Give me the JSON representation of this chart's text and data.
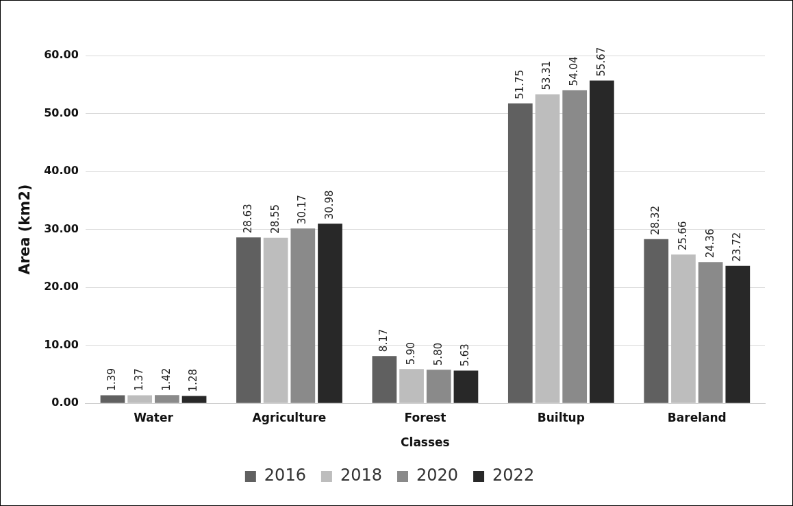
{
  "chart_data": {
    "type": "bar",
    "xlabel": "Classes",
    "ylabel": "Area (km2)",
    "categories": [
      "Water",
      "Agriculture",
      "Forest",
      "Builtup",
      "Bareland"
    ],
    "series": [
      {
        "name": "2016",
        "color": "#606060",
        "values": [
          1.39,
          28.63,
          8.17,
          51.75,
          28.32
        ],
        "value_labels": [
          "1.39",
          "28.63",
          "8.17",
          "51.75",
          "28.32"
        ]
      },
      {
        "name": "2018",
        "color": "#bdbdbd",
        "values": [
          1.37,
          28.55,
          5.9,
          53.31,
          25.66
        ],
        "value_labels": [
          "1.37",
          "28.55",
          "5.90",
          "53.31",
          "25.66"
        ]
      },
      {
        "name": "2020",
        "color": "#8a8a8a",
        "values": [
          1.42,
          30.17,
          5.8,
          54.04,
          24.36
        ],
        "value_labels": [
          "1.42",
          "30.17",
          "5.80",
          "54.04",
          "24.36"
        ]
      },
      {
        "name": "2022",
        "color": "#282828",
        "values": [
          1.28,
          30.98,
          5.63,
          55.67,
          23.72
        ],
        "value_labels": [
          "1.28",
          "30.98",
          "5.63",
          "55.67",
          "23.72"
        ]
      }
    ],
    "ylim": [
      0,
      60
    ],
    "yticks": [
      {
        "value": 0,
        "label": "0.00"
      },
      {
        "value": 10,
        "label": "10.00"
      },
      {
        "value": 20,
        "label": "20.00"
      },
      {
        "value": 30,
        "label": "30.00"
      },
      {
        "value": 40,
        "label": "40.00"
      },
      {
        "value": 50,
        "label": "50.00"
      },
      {
        "value": 60,
        "label": "60.00"
      }
    ],
    "grid": "y",
    "legend": "bottom"
  }
}
